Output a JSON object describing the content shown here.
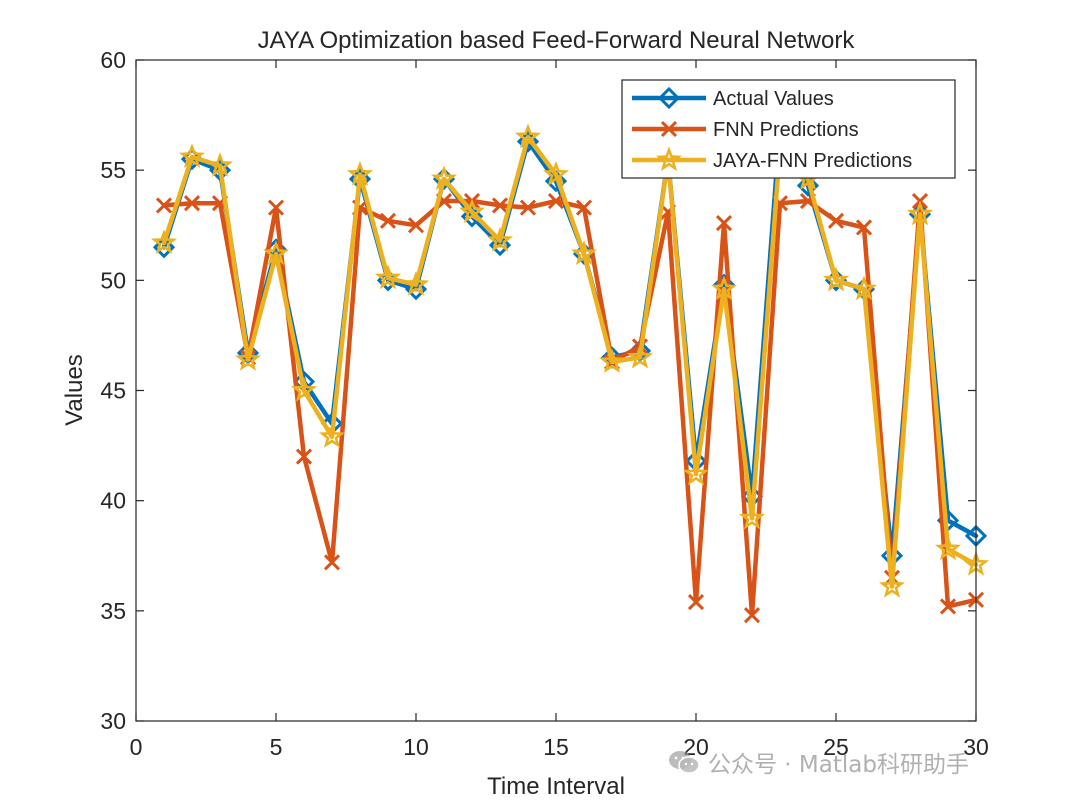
{
  "chart_data": {
    "type": "line",
    "title": "JAYA Optimization based Feed-Forward Neural Network",
    "xlabel": "Time Interval",
    "ylabel": "Values",
    "xlim": [
      0,
      30
    ],
    "ylim": [
      30,
      60
    ],
    "xticks": [
      0,
      5,
      10,
      15,
      20,
      25,
      30
    ],
    "yticks": [
      30,
      35,
      40,
      45,
      50,
      55,
      60
    ],
    "grid": false,
    "legend_location": "top-right",
    "x": [
      1,
      2,
      3,
      4,
      5,
      6,
      7,
      8,
      9,
      10,
      11,
      12,
      13,
      14,
      15,
      16,
      17,
      18,
      19,
      20,
      21,
      22,
      23,
      24,
      25,
      26,
      27,
      28,
      29,
      30
    ],
    "series": [
      {
        "name": "Actual Values",
        "color": "#0072BD",
        "marker": "diamond",
        "values": [
          51.5,
          55.5,
          55.0,
          46.7,
          51.4,
          45.4,
          43.5,
          54.6,
          50.0,
          49.6,
          54.6,
          52.9,
          51.6,
          56.3,
          54.5,
          51.2,
          46.5,
          46.8,
          55.5,
          41.8,
          49.8,
          40.2,
          57.0,
          54.3,
          50.0,
          49.6,
          37.5,
          53.0,
          39.1,
          38.4
        ]
      },
      {
        "name": "FNN Predictions",
        "color": "#D95319",
        "marker": "x",
        "values": [
          53.4,
          53.5,
          53.5,
          46.5,
          53.3,
          42.0,
          37.2,
          53.3,
          52.7,
          52.5,
          53.6,
          53.6,
          53.4,
          53.3,
          53.6,
          53.3,
          46.3,
          47.0,
          53.1,
          35.4,
          52.6,
          34.8,
          53.5,
          53.6,
          52.7,
          52.4,
          36.5,
          53.6,
          35.2,
          35.5
        ]
      },
      {
        "name": "JAYA-FNN Predictions",
        "color": "#EDB120",
        "marker": "star",
        "values": [
          51.7,
          55.6,
          55.2,
          46.4,
          51.2,
          45.0,
          42.9,
          54.8,
          50.1,
          49.8,
          54.6,
          53.1,
          51.8,
          56.5,
          54.8,
          51.2,
          46.3,
          46.5,
          55.5,
          41.2,
          49.6,
          39.2,
          56.0,
          54.6,
          50.0,
          49.6,
          36.1,
          53.0,
          37.8,
          37.1
        ]
      }
    ]
  },
  "watermark": {
    "text": "公众号 · Matlab科研助手",
    "icon": "wechat-icon"
  }
}
